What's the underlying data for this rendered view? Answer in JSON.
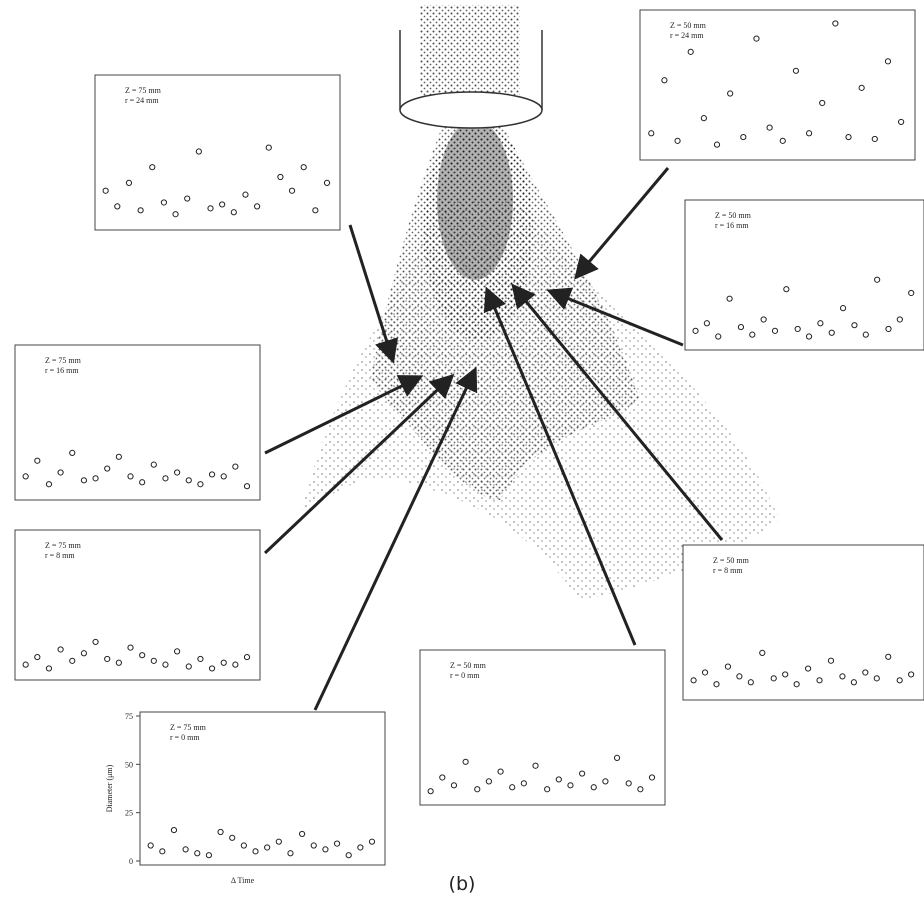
{
  "caption": "(b)",
  "chart_data": [
    {
      "type": "scatter",
      "title": "Z = 75 mm",
      "subtitle": "r = 24 mm",
      "xlim": [
        0,
        100
      ],
      "ylim": [
        0,
        75
      ],
      "x": [
        2,
        7,
        12,
        17,
        22,
        27,
        32,
        37,
        42,
        47,
        52,
        57,
        62,
        67,
        72,
        77,
        82,
        87,
        92,
        97
      ],
      "y": [
        18,
        10,
        22,
        8,
        30,
        12,
        6,
        14,
        38,
        9,
        11,
        7,
        16,
        10,
        40,
        25,
        18,
        30,
        8,
        22
      ]
    },
    {
      "type": "scatter",
      "title": "Z = 50 mm",
      "subtitle": "r = 24 mm",
      "xlim": [
        0,
        100
      ],
      "ylim": [
        0,
        75
      ],
      "x": [
        2,
        7,
        12,
        17,
        22,
        27,
        32,
        37,
        42,
        47,
        52,
        57,
        62,
        67,
        72,
        77,
        82,
        87,
        92,
        97
      ],
      "y": [
        12,
        40,
        8,
        55,
        20,
        6,
        33,
        10,
        62,
        15,
        8,
        45,
        12,
        28,
        70,
        10,
        36,
        9,
        50,
        18
      ]
    },
    {
      "type": "scatter",
      "title": "Z = 50 mm",
      "subtitle": "r = 16 mm",
      "xlim": [
        0,
        100
      ],
      "ylim": [
        0,
        75
      ],
      "x": [
        2,
        7,
        12,
        17,
        22,
        27,
        32,
        37,
        42,
        47,
        52,
        57,
        62,
        67,
        72,
        77,
        82,
        87,
        92,
        97
      ],
      "y": [
        8,
        12,
        5,
        25,
        10,
        6,
        14,
        8,
        30,
        9,
        5,
        12,
        7,
        20,
        11,
        6,
        35,
        9,
        14,
        28
      ]
    },
    {
      "type": "scatter",
      "title": "Z = 75 mm",
      "subtitle": "r = 16 mm",
      "xlim": [
        0,
        100
      ],
      "ylim": [
        0,
        75
      ],
      "x": [
        2,
        7,
        12,
        17,
        22,
        27,
        32,
        37,
        42,
        47,
        52,
        57,
        62,
        67,
        72,
        77,
        82,
        87,
        92,
        97
      ],
      "y": [
        10,
        18,
        6,
        12,
        22,
        8,
        9,
        14,
        20,
        10,
        7,
        16,
        9,
        12,
        8,
        6,
        11,
        10,
        15,
        5
      ]
    },
    {
      "type": "scatter",
      "title": "Z = 75 mm",
      "subtitle": "r = 8 mm",
      "xlim": [
        0,
        100
      ],
      "ylim": [
        0,
        75
      ],
      "x": [
        2,
        7,
        12,
        17,
        22,
        27,
        32,
        37,
        42,
        47,
        52,
        57,
        62,
        67,
        72,
        77,
        82,
        87,
        92,
        97
      ],
      "y": [
        6,
        10,
        4,
        14,
        8,
        12,
        18,
        9,
        7,
        15,
        11,
        8,
        6,
        13,
        5,
        9,
        4,
        7,
        6,
        10
      ]
    },
    {
      "type": "scatter",
      "title": "Z = 50 mm",
      "subtitle": "r = 8 mm",
      "xlim": [
        0,
        100
      ],
      "ylim": [
        0,
        75
      ],
      "x": [
        2,
        7,
        12,
        17,
        22,
        27,
        32,
        37,
        42,
        47,
        52,
        57,
        62,
        67,
        72,
        77,
        82,
        87,
        92,
        97
      ],
      "y": [
        8,
        12,
        6,
        15,
        10,
        7,
        22,
        9,
        11,
        6,
        14,
        8,
        18,
        10,
        7,
        12,
        9,
        20,
        8,
        11
      ]
    },
    {
      "type": "scatter",
      "title": "Z = 50 mm",
      "subtitle": "r = 0 mm",
      "xlim": [
        0,
        100
      ],
      "ylim": [
        0,
        75
      ],
      "x": [
        2,
        7,
        12,
        17,
        22,
        27,
        32,
        37,
        42,
        47,
        52,
        57,
        62,
        67,
        72,
        77,
        82,
        87,
        92,
        97
      ],
      "y": [
        5,
        12,
        8,
        20,
        6,
        10,
        15,
        7,
        9,
        18,
        6,
        11,
        8,
        14,
        7,
        10,
        22,
        9,
        6,
        12
      ]
    },
    {
      "type": "scatter",
      "title": "Z = 75 mm",
      "subtitle": "r = 0 mm",
      "xlim": [
        0,
        100
      ],
      "ylim": [
        0,
        75
      ],
      "yticks": [
        75,
        50,
        25,
        0
      ],
      "ylabel": "Diameter (μm)",
      "xlabel": "Δ Time",
      "x": [
        2,
        7,
        12,
        17,
        22,
        27,
        32,
        37,
        42,
        47,
        52,
        57,
        62,
        67,
        72,
        77,
        82,
        87,
        92,
        97
      ],
      "y": [
        8,
        5,
        16,
        6,
        4,
        3,
        15,
        12,
        8,
        5,
        7,
        10,
        4,
        14,
        8,
        6,
        9,
        3,
        7,
        10
      ]
    }
  ]
}
